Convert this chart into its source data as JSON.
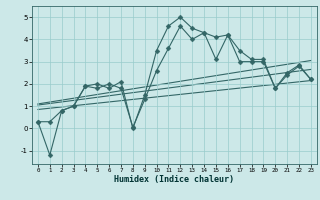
{
  "title": "",
  "xlabel": "Humidex (Indice chaleur)",
  "ylabel": "",
  "bg_color": "#cce8e8",
  "line_color": "#336666",
  "grid_color": "#99cccc",
  "xlim": [
    -0.5,
    23.5
  ],
  "ylim": [
    -1.6,
    5.5
  ],
  "xticks": [
    0,
    1,
    2,
    3,
    4,
    5,
    6,
    7,
    8,
    9,
    10,
    11,
    12,
    13,
    14,
    15,
    16,
    17,
    18,
    19,
    20,
    21,
    22,
    23
  ],
  "yticks": [
    -1,
    0,
    1,
    2,
    3,
    4,
    5
  ],
  "series1_x": [
    0,
    1,
    2,
    3,
    4,
    5,
    6,
    7,
    8,
    9,
    10,
    11,
    12,
    13,
    14,
    15,
    16,
    17,
    18,
    19,
    20,
    21,
    22,
    23
  ],
  "series1_y": [
    0.3,
    -1.2,
    0.8,
    1.0,
    1.9,
    2.0,
    1.8,
    2.1,
    0.0,
    1.5,
    3.5,
    4.6,
    5.0,
    4.5,
    4.3,
    4.1,
    4.2,
    3.0,
    3.0,
    3.0,
    1.8,
    2.4,
    2.8,
    2.2
  ],
  "series2_x": [
    0,
    1,
    2,
    3,
    4,
    5,
    6,
    7,
    8,
    9,
    10,
    11,
    12,
    13,
    14,
    15,
    16,
    17,
    18,
    19,
    20,
    21,
    22,
    23
  ],
  "series2_y": [
    0.3,
    0.3,
    0.8,
    1.0,
    1.9,
    1.8,
    2.0,
    1.8,
    0.05,
    1.3,
    2.6,
    3.6,
    4.6,
    4.0,
    4.3,
    3.1,
    4.2,
    3.5,
    3.1,
    3.1,
    1.8,
    2.5,
    2.85,
    2.2
  ],
  "trend1_x": [
    0,
    23
  ],
  "trend1_y": [
    1.05,
    2.65
  ],
  "trend2_x": [
    0,
    23
  ],
  "trend2_y": [
    1.1,
    3.05
  ],
  "trend3_x": [
    0,
    23
  ],
  "trend3_y": [
    0.85,
    2.15
  ],
  "marker": "D",
  "markersize": 2.5
}
